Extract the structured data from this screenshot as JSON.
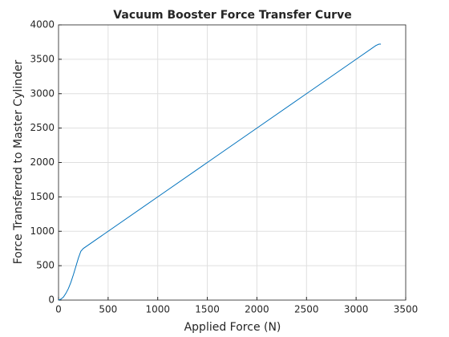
{
  "chart_data": {
    "type": "line",
    "title": "Vacuum Booster Force Transfer Curve",
    "x_label": "Applied Force (N)",
    "y_label": "Force Transferred to Master Cylinder",
    "x": [
      0,
      25,
      50,
      75,
      100,
      125,
      150,
      175,
      200,
      225,
      250,
      500,
      1000,
      1500,
      2000,
      2500,
      3000,
      3200,
      3230,
      3250
    ],
    "series": [
      {
        "name": "Force",
        "color": "#0072bd",
        "values": [
          0,
          15,
          45,
          100,
          170,
          260,
          370,
          490,
          610,
          710,
          750,
          1000,
          1500,
          2000,
          2500,
          3000,
          3500,
          3700,
          3720,
          3720
        ]
      }
    ],
    "xlim": [
      0,
      3500
    ],
    "xticks": [
      0,
      500,
      1000,
      1500,
      2000,
      2500,
      3000,
      3500
    ],
    "ylim": [
      0,
      4000
    ],
    "yticks": [
      0,
      500,
      1000,
      1500,
      2000,
      2500,
      3000,
      3500,
      4000
    ],
    "grid": true
  }
}
